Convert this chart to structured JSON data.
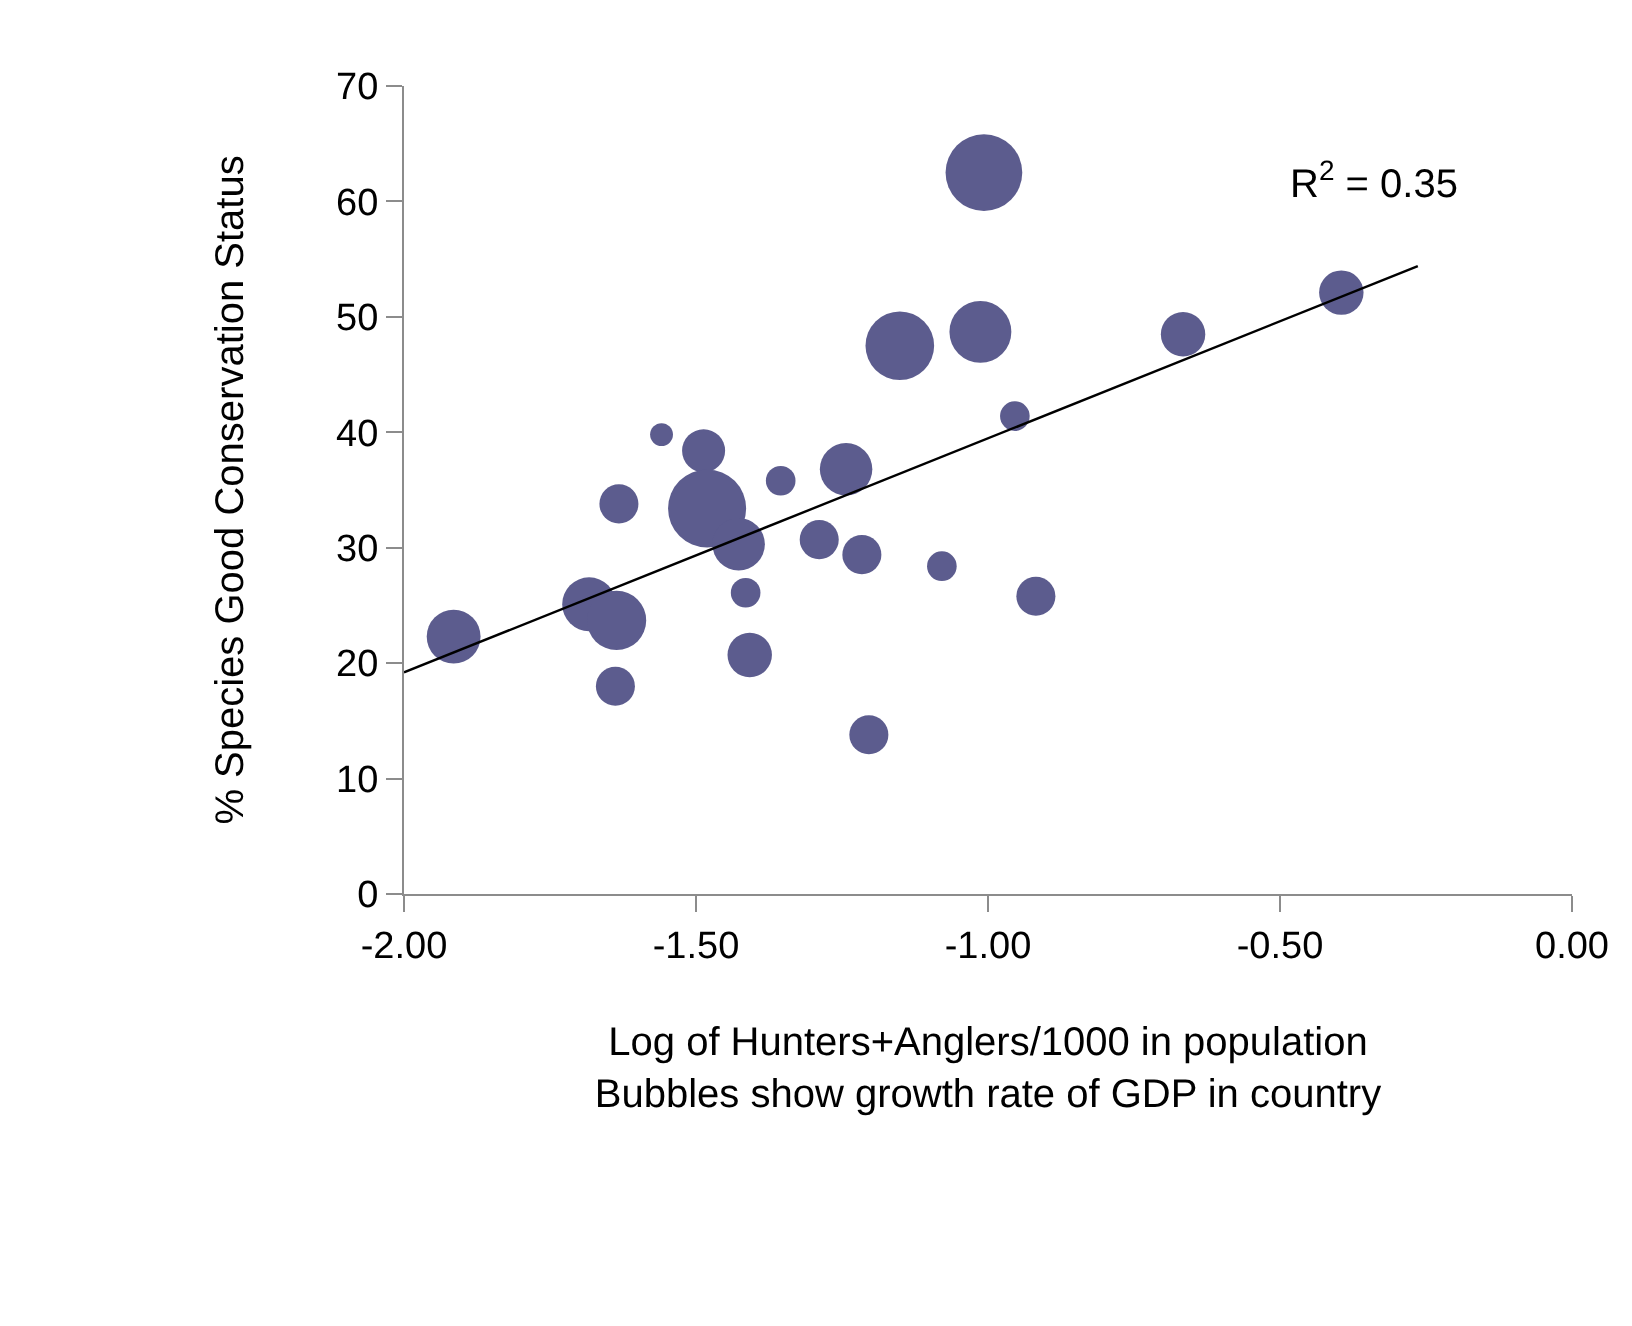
{
  "chart_data": {
    "type": "bubble",
    "xlabel": "Log of Hunters+Anglers/1000 in population\nBubbles show growth rate of GDP in country",
    "ylabel": "% Species Good Conservation Status",
    "xlim": [
      -2,
      0
    ],
    "xticks": [
      {
        "value": -2,
        "label": "-2.00"
      },
      {
        "value": -1.5,
        "label": "-1.50"
      },
      {
        "value": -1,
        "label": "-1.00"
      },
      {
        "value": -0.5,
        "label": "-0.50"
      },
      {
        "value": 0,
        "label": "0.00"
      }
    ],
    "ylim": [
      0,
      70
    ],
    "yticks": [
      0,
      10,
      20,
      30,
      40,
      50,
      60,
      70
    ],
    "legend": false,
    "annotations": [
      "R$^{2}$ = 0.35"
    ],
    "series": [
      {
        "color": "#5c5c8e",
        "x": [
          -1.915,
          -1.683,
          -1.636,
          -1.638,
          -1.632,
          -1.559,
          -1.487,
          -1.481,
          -1.427,
          -1.415,
          -1.408,
          -1.355,
          -1.289,
          -1.243,
          -1.216,
          -1.204,
          -1.151,
          -1.079,
          -1.007,
          -1.013,
          -0.954,
          -0.918,
          -0.666,
          -0.395
        ],
        "values": [
          22.3,
          25.1,
          23.7,
          18.0,
          33.8,
          39.8,
          38.4,
          33.4,
          30.3,
          26.1,
          20.7,
          35.8,
          30.7,
          36.8,
          29.4,
          13.8,
          47.5,
          28.4,
          62.5,
          48.7,
          41.4,
          25.8,
          48.5,
          52.1
        ],
        "sizes": [
          0.476,
          0.476,
          0.576,
          0.25,
          0.25,
          0.086,
          0.304,
          1,
          0.452,
          0.144,
          0.324,
          0.144,
          0.25,
          0.452,
          0.25,
          0.25,
          0.773,
          0.144,
          0.966,
          0.629,
          0.144,
          0.25,
          0.324,
          0.324
        ]
      },
      {
        "type": "line",
        "color": "#000000",
        "line_style": "solid",
        "x": [
          -2,
          -0.264
        ],
        "values": [
          19.2,
          54.4
        ]
      }
    ]
  }
}
